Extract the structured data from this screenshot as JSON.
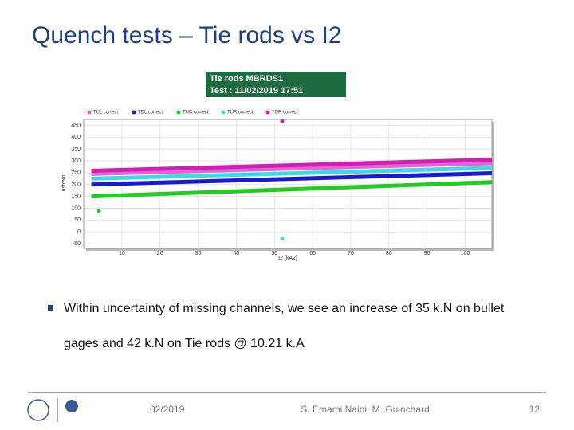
{
  "title": "Quench tests – Tie rods vs I2",
  "chart_data": {
    "type": "line",
    "header": [
      "Tie rods MBRDS1",
      "Test : 11/02/2019 17:51"
    ],
    "xlabel": "I2 [kA2]",
    "ylabel": "ustrain",
    "xlim": [
      0,
      107
    ],
    "xticks": [
      10,
      20,
      30,
      40,
      50,
      60,
      70,
      80,
      90,
      100
    ],
    "ylim": [
      -70,
      475
    ],
    "yticks": [
      -50,
      0,
      50,
      100,
      150,
      200,
      250,
      300,
      350,
      400,
      450
    ],
    "grid": true,
    "series": [
      {
        "name": "TUL correct",
        "color": "#e860e0",
        "x": [
          2,
          107
        ],
        "values": [
          245,
          290
        ]
      },
      {
        "name": "TDL correct",
        "color": "#1a1ad0",
        "x": [
          2,
          107
        ],
        "values": [
          200,
          248
        ]
      },
      {
        "name": "TUC correct",
        "color": "#22cc22",
        "x": [
          2,
          107
        ],
        "values": [
          150,
          210
        ],
        "outlier": {
          "x": 4,
          "value": 88
        }
      },
      {
        "name": "TUR correct",
        "color": "#40d8e8",
        "x": [
          2,
          107
        ],
        "values": [
          225,
          270
        ],
        "outlier": {
          "x": 52,
          "value": -30
        }
      },
      {
        "name": "TDR correct",
        "color": "#d020b0",
        "x": [
          2,
          107
        ],
        "values": [
          258,
          305
        ],
        "outlier": {
          "x": 52,
          "value": 467
        }
      }
    ]
  },
  "bullet": "Within uncertainty of missing channels, we see an increase of 35 k.N on bullet gages and 42 k.N on Tie rods @ 10.21 k.A",
  "footer": {
    "date": "02/2019",
    "authors": "S. Emami Naini, M. Guinchard",
    "page": "12"
  }
}
